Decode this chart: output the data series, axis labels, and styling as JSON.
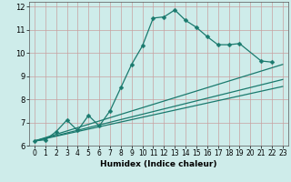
{
  "xlabel": "Humidex (Indice chaleur)",
  "xlim": [
    -0.5,
    23.5
  ],
  "ylim": [
    6,
    12.2
  ],
  "xticks": [
    0,
    1,
    2,
    3,
    4,
    5,
    6,
    7,
    8,
    9,
    10,
    11,
    12,
    13,
    14,
    15,
    16,
    17,
    18,
    19,
    20,
    21,
    22,
    23
  ],
  "yticks": [
    6,
    7,
    8,
    9,
    10,
    11,
    12
  ],
  "bg_color": "#ceecea",
  "line_color": "#1a7a6e",
  "grid_color": "#c8a0a0",
  "line1_x": [
    0,
    1,
    2,
    3,
    4,
    5,
    6,
    7,
    8,
    9,
    10,
    11,
    12,
    13,
    14,
    15,
    16,
    17,
    18,
    19,
    21,
    22
  ],
  "line1_y": [
    6.2,
    6.25,
    6.6,
    7.1,
    6.65,
    7.3,
    6.85,
    7.5,
    8.5,
    9.5,
    10.3,
    11.5,
    11.55,
    11.85,
    11.4,
    11.1,
    10.7,
    10.35,
    10.35,
    10.4,
    9.65,
    9.6
  ],
  "line2_x": [
    0,
    23
  ],
  "line2_y": [
    6.2,
    9.5
  ],
  "line3_x": [
    0,
    23
  ],
  "line3_y": [
    6.2,
    8.55
  ],
  "line4_x": [
    0,
    23
  ],
  "line4_y": [
    6.2,
    8.85
  ],
  "marker": "D",
  "markersize": 2.5,
  "linewidth": 0.9
}
